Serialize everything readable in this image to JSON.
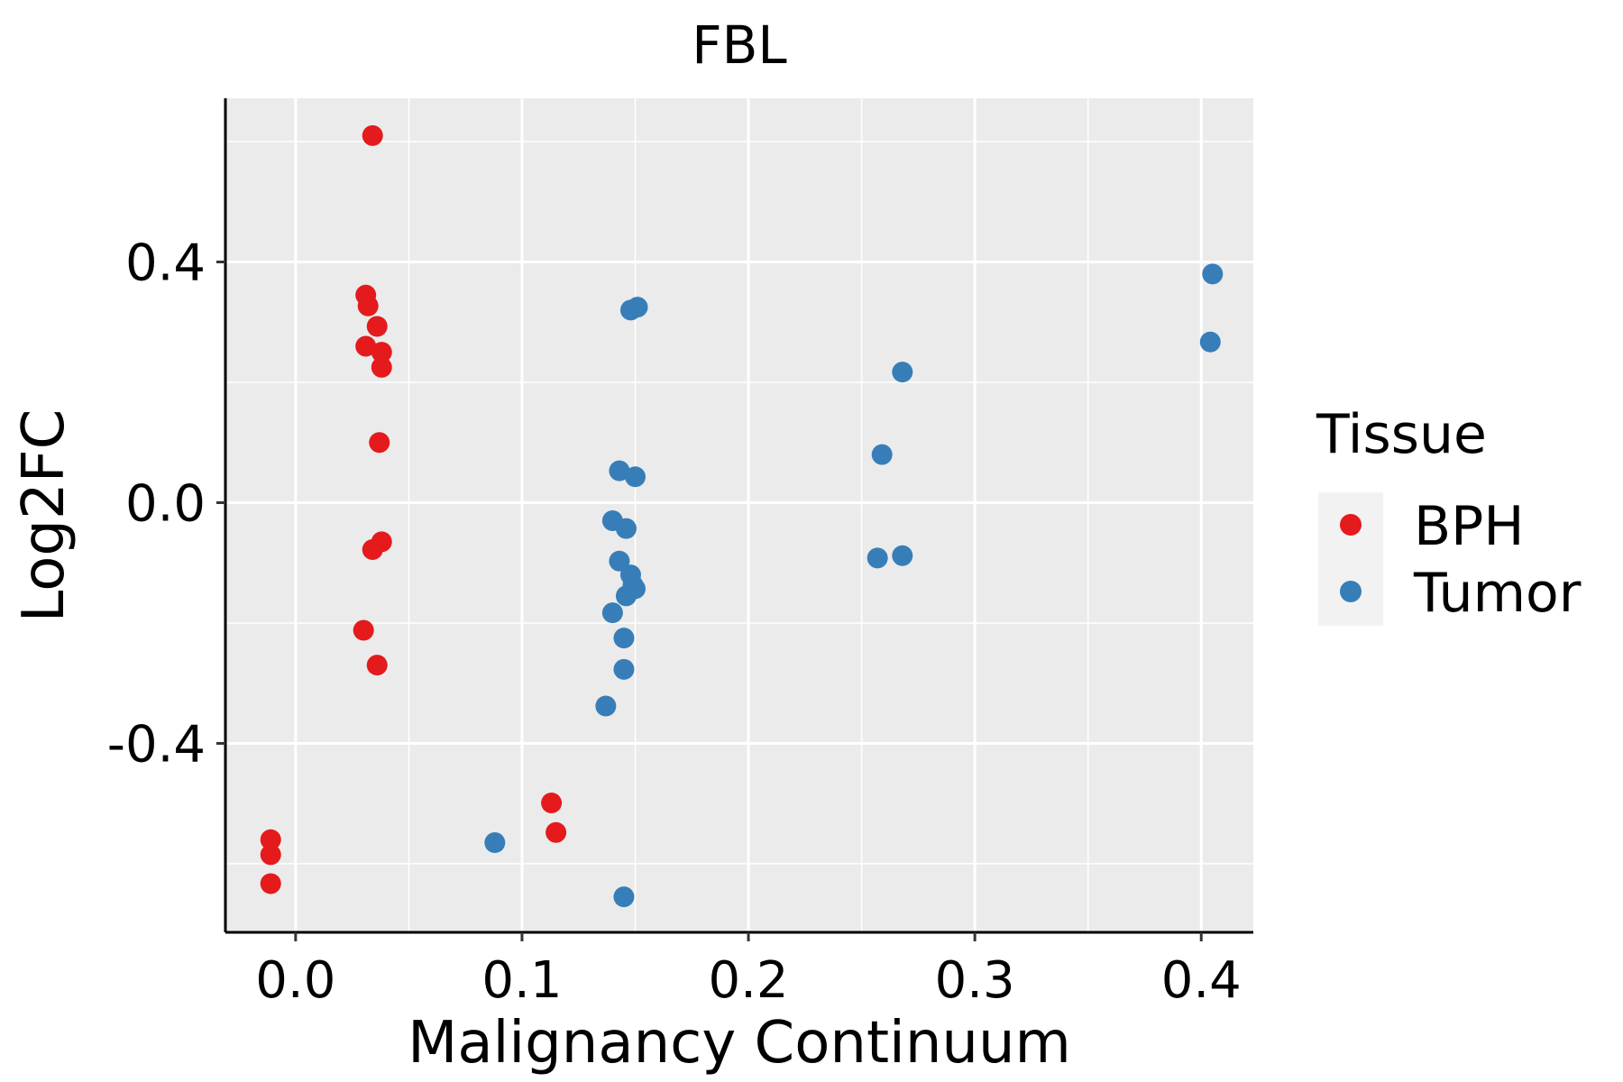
{
  "chart_data": {
    "type": "scatter",
    "title": "FBL",
    "xlabel": "Malignancy Continuum",
    "ylabel": "Log2FC",
    "xlim": [
      -0.031,
      0.423
    ],
    "ylim": [
      -0.714,
      0.672
    ],
    "x_ticks": [
      0.0,
      0.1,
      0.2,
      0.3,
      0.4
    ],
    "x_tick_labels": [
      "0.0",
      "0.1",
      "0.2",
      "0.3",
      "0.4"
    ],
    "y_ticks": [
      -0.4,
      0.0,
      0.4
    ],
    "y_tick_labels": [
      "-0.4",
      "0.0",
      "0.4"
    ],
    "legend": {
      "title": "Tissue",
      "position": "right"
    },
    "grid": true,
    "series": [
      {
        "name": "BPH",
        "color": "#E41A1C",
        "points": [
          {
            "x": 0.034,
            "y": 0.61
          },
          {
            "x": 0.031,
            "y": 0.345
          },
          {
            "x": 0.032,
            "y": 0.327
          },
          {
            "x": 0.036,
            "y": 0.293
          },
          {
            "x": 0.031,
            "y": 0.26
          },
          {
            "x": 0.038,
            "y": 0.25
          },
          {
            "x": 0.038,
            "y": 0.225
          },
          {
            "x": 0.037,
            "y": 0.1
          },
          {
            "x": 0.038,
            "y": -0.065
          },
          {
            "x": 0.034,
            "y": -0.078
          },
          {
            "x": 0.03,
            "y": -0.212
          },
          {
            "x": 0.036,
            "y": -0.27
          },
          {
            "x": 0.113,
            "y": -0.499
          },
          {
            "x": 0.115,
            "y": -0.548
          },
          {
            "x": -0.011,
            "y": -0.56
          },
          {
            "x": -0.011,
            "y": -0.585
          },
          {
            "x": -0.011,
            "y": -0.633
          }
        ]
      },
      {
        "name": "Tumor",
        "color": "#377EB8",
        "points": [
          {
            "x": 0.405,
            "y": 0.38
          },
          {
            "x": 0.404,
            "y": 0.267
          },
          {
            "x": 0.151,
            "y": 0.325
          },
          {
            "x": 0.148,
            "y": 0.32
          },
          {
            "x": 0.268,
            "y": 0.217
          },
          {
            "x": 0.259,
            "y": 0.08
          },
          {
            "x": 0.143,
            "y": 0.053
          },
          {
            "x": 0.15,
            "y": 0.043
          },
          {
            "x": 0.14,
            "y": -0.03
          },
          {
            "x": 0.146,
            "y": -0.043
          },
          {
            "x": 0.143,
            "y": -0.097
          },
          {
            "x": 0.148,
            "y": -0.12
          },
          {
            "x": 0.149,
            "y": -0.137
          },
          {
            "x": 0.15,
            "y": -0.143
          },
          {
            "x": 0.146,
            "y": -0.155
          },
          {
            "x": 0.14,
            "y": -0.183
          },
          {
            "x": 0.145,
            "y": -0.225
          },
          {
            "x": 0.145,
            "y": -0.277
          },
          {
            "x": 0.137,
            "y": -0.338
          },
          {
            "x": 0.257,
            "y": -0.092
          },
          {
            "x": 0.268,
            "y": -0.088
          },
          {
            "x": 0.088,
            "y": -0.565
          },
          {
            "x": 0.145,
            "y": -0.655
          }
        ]
      }
    ]
  }
}
